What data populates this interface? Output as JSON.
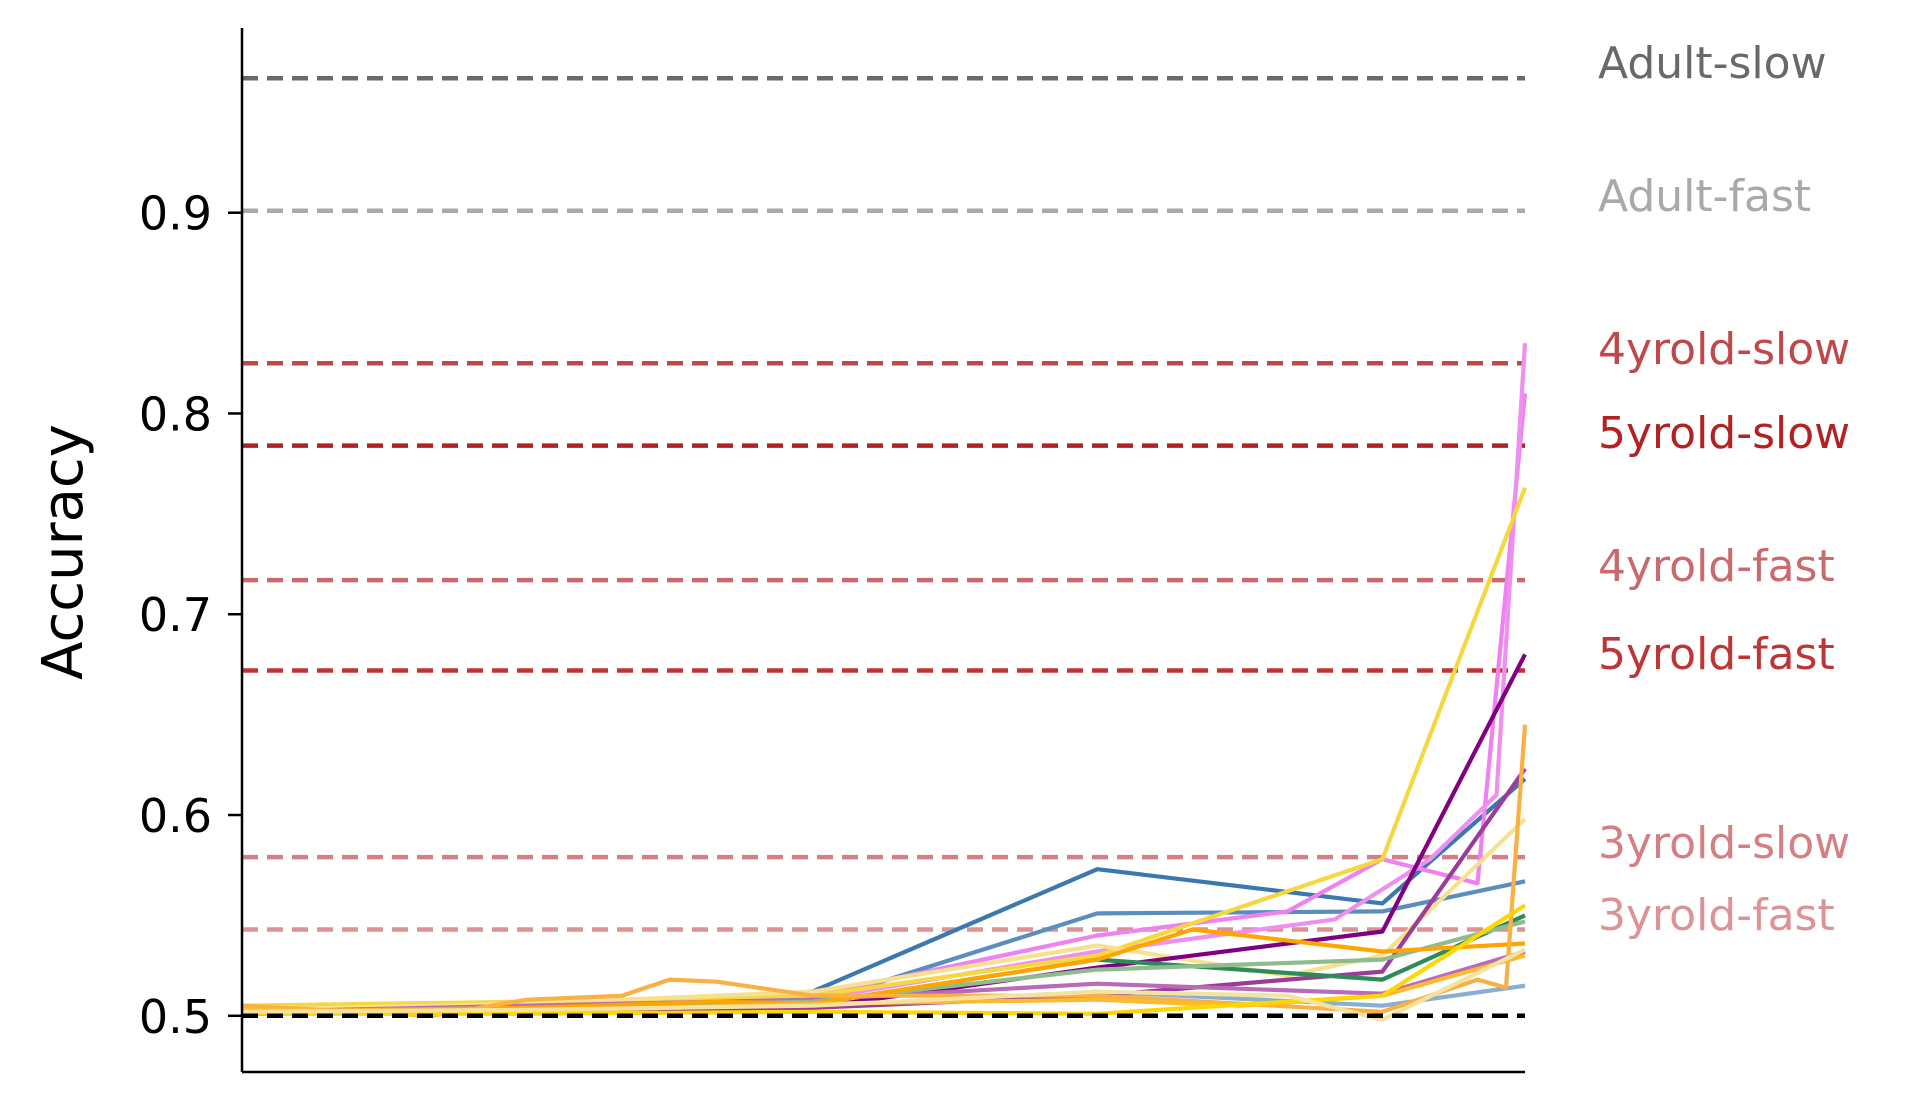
{
  "chart_data": {
    "type": "line",
    "title": "",
    "xlabel": "",
    "ylabel": "Accuracy",
    "ylim": [
      0.472,
      0.992
    ],
    "xlim": [
      0,
      13.5
    ],
    "yticks": [
      "0.5",
      "0.6",
      "0.7",
      "0.8",
      "0.9"
    ],
    "x_ticks_shown": false,
    "grid": false,
    "reference_lines": [
      {
        "label": "Adult-slow",
        "value": 0.967,
        "color": "#696969"
      },
      {
        "label": "Adult-fast",
        "value": 0.901,
        "color": "#a9a9a9"
      },
      {
        "label": "4yrold-slow",
        "value": 0.825,
        "color": "#c0474a"
      },
      {
        "label": "5yrold-slow",
        "value": 0.784,
        "color": "#b22222"
      },
      {
        "label": "4yrold-fast",
        "value": 0.717,
        "color": "#c96a6e"
      },
      {
        "label": "5yrold-fast",
        "value": 0.672,
        "color": "#bf3434"
      },
      {
        "label": "3yrold-slow",
        "value": 0.579,
        "color": "#d47f84"
      },
      {
        "label": "3yrold-fast",
        "value": 0.543,
        "color": "#dc9396"
      }
    ],
    "chance_line": {
      "value": 0.5,
      "color": "#000000"
    },
    "series": [
      {
        "color": "#3a78ae",
        "x": [
          0,
          3,
          6,
          9,
          12,
          13.5
        ],
        "values": [
          0.502,
          0.505,
          0.512,
          0.573,
          0.556,
          0.618
        ]
      },
      {
        "color": "#5a8fbd",
        "x": [
          0,
          3,
          6,
          9,
          12,
          13.5
        ],
        "values": [
          0.502,
          0.504,
          0.506,
          0.551,
          0.552,
          0.567
        ]
      },
      {
        "color": "#88aed0",
        "x": [
          0,
          3,
          6,
          9,
          12,
          13.5
        ],
        "values": [
          0.501,
          0.502,
          0.504,
          0.512,
          0.505,
          0.515
        ]
      },
      {
        "color": "#ee82ee",
        "x": [
          0,
          3,
          6,
          9,
          11,
          12,
          13,
          13.5
        ],
        "values": [
          0.502,
          0.505,
          0.51,
          0.54,
          0.552,
          0.578,
          0.566,
          0.81
        ]
      },
      {
        "color": "#ef8fef",
        "x": [
          0,
          3,
          6,
          9,
          11.5,
          12.5,
          13.2,
          13.5
        ],
        "values": [
          0.502,
          0.505,
          0.508,
          0.532,
          0.548,
          0.578,
          0.61,
          0.835
        ]
      },
      {
        "color": "#f5d742",
        "x": [
          0,
          3,
          6,
          9,
          12,
          13.5
        ],
        "values": [
          0.505,
          0.507,
          0.51,
          0.53,
          0.578,
          0.763
        ]
      },
      {
        "color": "#f7e08e",
        "x": [
          0,
          3,
          6,
          9,
          11,
          12,
          13.5
        ],
        "values": [
          0.503,
          0.506,
          0.512,
          0.535,
          0.52,
          0.53,
          0.598
        ]
      },
      {
        "color": "#800080",
        "x": [
          0,
          3,
          6,
          9,
          12,
          13.5
        ],
        "values": [
          0.502,
          0.503,
          0.504,
          0.524,
          0.542,
          0.68
        ]
      },
      {
        "color": "#9b3c9b",
        "x": [
          0,
          3,
          6,
          9,
          12,
          13.5
        ],
        "values": [
          0.501,
          0.502,
          0.504,
          0.51,
          0.522,
          0.623
        ]
      },
      {
        "color": "#b86cb8",
        "x": [
          0,
          3,
          6,
          9,
          12,
          13.5
        ],
        "values": [
          0.502,
          0.505,
          0.508,
          0.516,
          0.511,
          0.532
        ]
      },
      {
        "color": "#2e8b57",
        "x": [
          0,
          3,
          6,
          9,
          12,
          13.5
        ],
        "values": [
          0.501,
          0.503,
          0.506,
          0.528,
          0.518,
          0.55
        ]
      },
      {
        "color": "#8fbc8f",
        "x": [
          0,
          3,
          6,
          9,
          12,
          13.5
        ],
        "values": [
          0.502,
          0.504,
          0.507,
          0.523,
          0.528,
          0.547
        ]
      },
      {
        "color": "#ffa500",
        "x": [
          0,
          3,
          5,
          6,
          9,
          10,
          12,
          13.5
        ],
        "values": [
          0.502,
          0.504,
          0.507,
          0.506,
          0.528,
          0.543,
          0.532,
          0.536
        ]
      },
      {
        "color": "#f9b044",
        "x": [
          0,
          2,
          3,
          4,
          4.5,
          5,
          6,
          9,
          12,
          13,
          13.3,
          13.5
        ],
        "values": [
          0.505,
          0.5,
          0.508,
          0.51,
          0.518,
          0.517,
          0.51,
          0.51,
          0.502,
          0.518,
          0.514,
          0.645
        ]
      },
      {
        "color": "#fdb930",
        "x": [
          0,
          3,
          6,
          9,
          10.5,
          12,
          13.5
        ],
        "values": [
          0.503,
          0.502,
          0.506,
          0.508,
          0.505,
          0.51,
          0.53
        ]
      },
      {
        "color": "#ffd700",
        "x": [
          0,
          3,
          6,
          9,
          12,
          13.5
        ],
        "values": [
          0.501,
          0.501,
          0.502,
          0.501,
          0.51,
          0.555
        ]
      },
      {
        "color": "#f2e3a0",
        "x": [
          0,
          3,
          6,
          9,
          11,
          12,
          13.5
        ],
        "values": [
          0.502,
          0.503,
          0.505,
          0.512,
          0.51,
          0.498,
          0.533
        ]
      }
    ]
  }
}
